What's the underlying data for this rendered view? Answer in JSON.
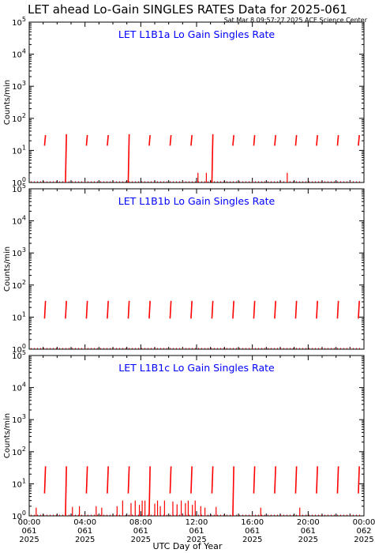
{
  "header": {
    "title": "LET ahead Lo-Gain SINGLES RATES Data for 2025-061",
    "timestamp": "Sat Mar  8 09:57:27 2025 ACE Science Center"
  },
  "x_axis_title": "UTC Day of Year",
  "colors": {
    "panel_title": "#0000ff",
    "data": "#ff0000",
    "axes": "#000000",
    "background": "#ffffff"
  },
  "chart_data": [
    {
      "type": "scatter",
      "title": "LET L1B1a Lo Gain Singles Rate",
      "ylabel": "Counts/min",
      "yscale": "log",
      "ylim": [
        1,
        100000
      ],
      "xlim": [
        0,
        24
      ],
      "x_unit": "hours UTC",
      "y_tick_labels": [
        "10^0",
        "10^1",
        "10^2",
        "10^3",
        "10^4",
        "10^5"
      ],
      "series": [
        {
          "values_desc": "periodic spikes",
          "spikes": [
            {
              "x": 1.1,
              "low": 14,
              "high": 30
            },
            {
              "x": 2.6,
              "low": 1,
              "high": 32
            },
            {
              "x": 4.1,
              "low": 14,
              "high": 30
            },
            {
              "x": 5.6,
              "low": 14,
              "high": 30
            },
            {
              "x": 7.1,
              "low": 1,
              "high": 32
            },
            {
              "x": 8.6,
              "low": 14,
              "high": 30
            },
            {
              "x": 10.1,
              "low": 14,
              "high": 30
            },
            {
              "x": 11.6,
              "low": 14,
              "high": 30
            },
            {
              "x": 13.1,
              "low": 1,
              "high": 32
            },
            {
              "x": 14.6,
              "low": 14,
              "high": 30
            },
            {
              "x": 16.1,
              "low": 14,
              "high": 30
            },
            {
              "x": 17.6,
              "low": 14,
              "high": 30
            },
            {
              "x": 19.1,
              "low": 14,
              "high": 30
            },
            {
              "x": 20.6,
              "low": 14,
              "high": 30
            },
            {
              "x": 22.1,
              "low": 14,
              "high": 30
            },
            {
              "x": 23.6,
              "low": 14,
              "high": 30
            }
          ],
          "small": [
            {
              "x": 12.1,
              "v": 2
            },
            {
              "x": 12.7,
              "v": 2
            },
            {
              "x": 18.5,
              "v": 2
            }
          ]
        }
      ]
    },
    {
      "type": "scatter",
      "title": "LET L1B1b Lo Gain Singles Rate",
      "ylabel": "Counts/min",
      "yscale": "log",
      "ylim": [
        1,
        100000
      ],
      "xlim": [
        0,
        24
      ],
      "x_unit": "hours UTC",
      "y_tick_labels": [
        "10^0",
        "10^1",
        "10^2",
        "10^3",
        "10^4",
        "10^5"
      ],
      "series": [
        {
          "values_desc": "periodic spikes",
          "spikes": [
            {
              "x": 1.1,
              "low": 9,
              "high": 32
            },
            {
              "x": 2.6,
              "low": 9,
              "high": 32
            },
            {
              "x": 4.1,
              "low": 9,
              "high": 32
            },
            {
              "x": 5.6,
              "low": 9,
              "high": 32
            },
            {
              "x": 7.1,
              "low": 9,
              "high": 32
            },
            {
              "x": 8.6,
              "low": 9,
              "high": 32
            },
            {
              "x": 10.1,
              "low": 9,
              "high": 32
            },
            {
              "x": 11.6,
              "low": 9,
              "high": 32
            },
            {
              "x": 13.1,
              "low": 9,
              "high": 32
            },
            {
              "x": 14.6,
              "low": 9,
              "high": 32
            },
            {
              "x": 16.1,
              "low": 9,
              "high": 32
            },
            {
              "x": 17.6,
              "low": 9,
              "high": 32
            },
            {
              "x": 19.1,
              "low": 9,
              "high": 32
            },
            {
              "x": 20.6,
              "low": 9,
              "high": 32
            },
            {
              "x": 22.1,
              "low": 9,
              "high": 32
            },
            {
              "x": 23.6,
              "low": 9,
              "high": 32
            }
          ],
          "small": []
        }
      ]
    },
    {
      "type": "scatter",
      "title": "LET L1B1c Lo Gain Singles Rate",
      "ylabel": "Counts/min",
      "yscale": "log",
      "ylim": [
        1,
        100000
      ],
      "xlim": [
        0,
        24
      ],
      "x_unit": "hours UTC",
      "y_tick_labels": [
        "10^0",
        "10^1",
        "10^2",
        "10^3",
        "10^4",
        "10^5"
      ],
      "series": [
        {
          "values_desc": "periodic spikes",
          "spikes": [
            {
              "x": 1.1,
              "low": 5,
              "high": 35
            },
            {
              "x": 2.6,
              "low": 1,
              "high": 35
            },
            {
              "x": 4.1,
              "low": 5,
              "high": 35
            },
            {
              "x": 5.6,
              "low": 5,
              "high": 35
            },
            {
              "x": 7.1,
              "low": 5,
              "high": 35
            },
            {
              "x": 8.6,
              "low": 1,
              "high": 35
            },
            {
              "x": 10.1,
              "low": 5,
              "high": 35
            },
            {
              "x": 11.6,
              "low": 5,
              "high": 35
            },
            {
              "x": 13.1,
              "low": 5,
              "high": 35
            },
            {
              "x": 14.6,
              "low": 1,
              "high": 35
            },
            {
              "x": 16.1,
              "low": 5,
              "high": 35
            },
            {
              "x": 17.6,
              "low": 5,
              "high": 35
            },
            {
              "x": 19.1,
              "low": 5,
              "high": 35
            },
            {
              "x": 20.6,
              "low": 5,
              "high": 35
            },
            {
              "x": 22.1,
              "low": 5,
              "high": 35
            },
            {
              "x": 23.6,
              "low": 5,
              "high": 35
            }
          ],
          "small": [
            {
              "x": 0.5,
              "v": 1.8
            },
            {
              "x": 3.1,
              "v": 1.9
            },
            {
              "x": 3.6,
              "v": 2.0
            },
            {
              "x": 4.8,
              "v": 2.0
            },
            {
              "x": 5.2,
              "v": 1.8
            },
            {
              "x": 6.3,
              "v": 2.0
            },
            {
              "x": 6.7,
              "v": 3.0
            },
            {
              "x": 7.3,
              "v": 2.5
            },
            {
              "x": 7.6,
              "v": 3.0
            },
            {
              "x": 7.9,
              "v": 2.2
            },
            {
              "x": 8.1,
              "v": 3.0
            },
            {
              "x": 8.3,
              "v": 3.0
            },
            {
              "x": 9.0,
              "v": 2.4
            },
            {
              "x": 9.2,
              "v": 3.0
            },
            {
              "x": 9.4,
              "v": 2.0
            },
            {
              "x": 9.7,
              "v": 3.0
            },
            {
              "x": 10.3,
              "v": 2.8
            },
            {
              "x": 10.6,
              "v": 2.3
            },
            {
              "x": 10.9,
              "v": 3.0
            },
            {
              "x": 11.2,
              "v": 2.5
            },
            {
              "x": 11.4,
              "v": 3.0
            },
            {
              "x": 11.7,
              "v": 2.2
            },
            {
              "x": 11.9,
              "v": 3.0
            },
            {
              "x": 12.3,
              "v": 2.0
            },
            {
              "x": 12.6,
              "v": 1.8
            },
            {
              "x": 13.4,
              "v": 1.9
            },
            {
              "x": 16.6,
              "v": 1.8
            },
            {
              "x": 19.4,
              "v": 1.8
            }
          ]
        }
      ]
    }
  ],
  "x_ticks": [
    {
      "time": "00:00",
      "doy": "061",
      "year": "2025"
    },
    {
      "time": "04:00",
      "doy": "061",
      "year": "2025"
    },
    {
      "time": "08:00",
      "doy": "061",
      "year": "2025"
    },
    {
      "time": "12:00",
      "doy": "061",
      "year": "2025"
    },
    {
      "time": "16:00",
      "doy": "061",
      "year": "2025"
    },
    {
      "time": "20:00",
      "doy": "061",
      "year": "2025"
    },
    {
      "time": "00:00",
      "doy": "062",
      "year": "2025"
    }
  ]
}
